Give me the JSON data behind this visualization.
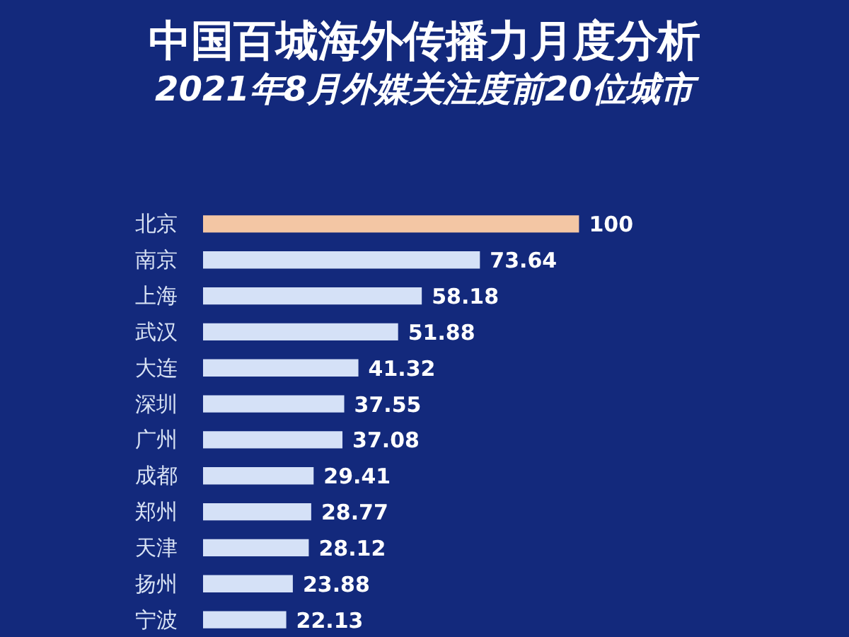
{
  "chart_data": {
    "type": "bar",
    "orientation": "horizontal",
    "title": "中国百城海外传播力月度分析",
    "subtitle": "2021年8月外媒关注度前20位城市",
    "categories": [
      "北京",
      "南京",
      "上海",
      "武汉",
      "大连",
      "深圳",
      "广州",
      "成都",
      "郑州",
      "天津",
      "扬州",
      "宁波"
    ],
    "values": [
      100,
      73.64,
      58.18,
      51.88,
      41.32,
      37.55,
      37.08,
      29.41,
      28.77,
      28.12,
      23.88,
      22.13
    ],
    "colors": [
      "#f3c6a4",
      "#d5e1f7",
      "#d5e1f7",
      "#d5e1f7",
      "#d5e1f7",
      "#d5e1f7",
      "#d5e1f7",
      "#d5e1f7",
      "#d5e1f7",
      "#d5e1f7",
      "#d5e1f7",
      "#d5e1f7"
    ],
    "data_labels": true,
    "tick_labels": "y"
  }
}
